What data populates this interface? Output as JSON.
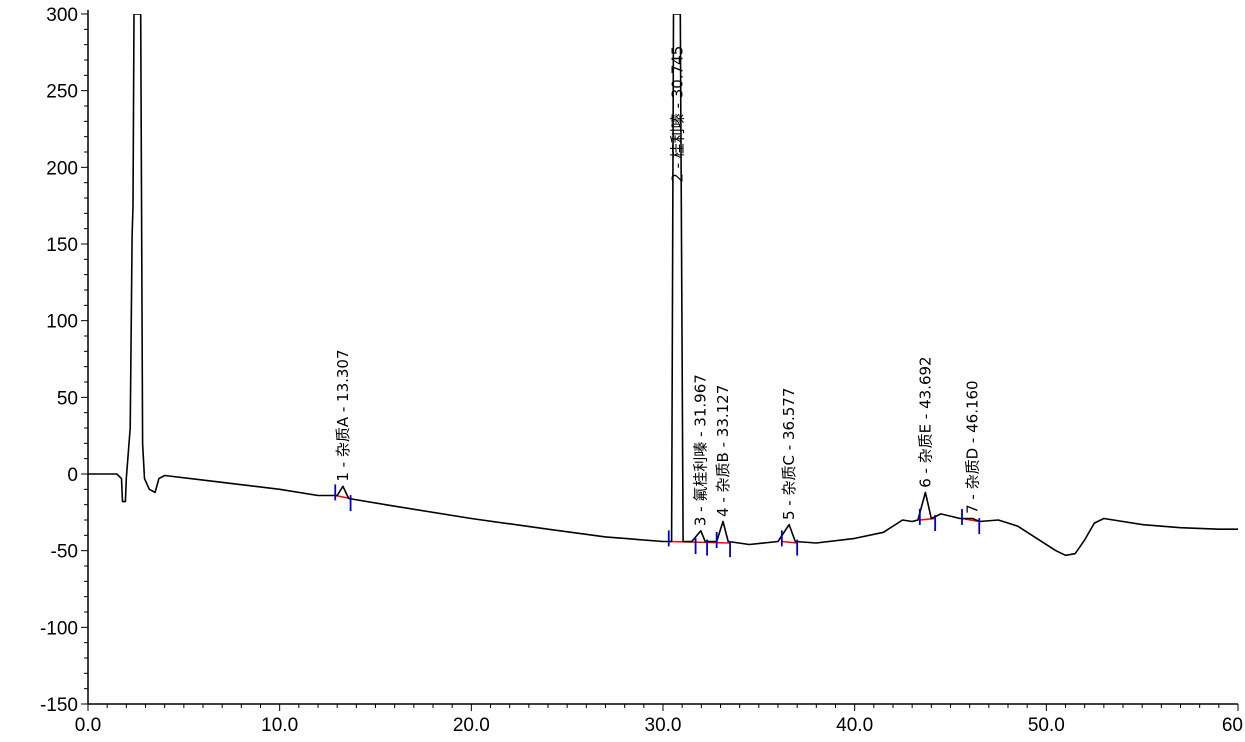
{
  "chart_data": {
    "type": "line",
    "title": "",
    "xlabel": "",
    "ylabel": "",
    "xlim": [
      0.0,
      60.0
    ],
    "ylim": [
      -150,
      300
    ],
    "x_ticks": [
      {
        "value": 0,
        "label": "0.0"
      },
      {
        "value": 10,
        "label": "10.0"
      },
      {
        "value": 20,
        "label": "20.0"
      },
      {
        "value": 30,
        "label": "30.0"
      },
      {
        "value": 40,
        "label": "40.0"
      },
      {
        "value": 50,
        "label": "50.0"
      },
      {
        "value": 60,
        "label": "60"
      }
    ],
    "y_ticks": [
      {
        "value": 300,
        "label": "300"
      },
      {
        "value": 250,
        "label": "250"
      },
      {
        "value": 200,
        "label": "200"
      },
      {
        "value": 150,
        "label": "150"
      },
      {
        "value": 100,
        "label": "100"
      },
      {
        "value": 50,
        "label": "50"
      },
      {
        "value": 0,
        "label": "0"
      },
      {
        "value": -50,
        "label": "-50"
      },
      {
        "value": -100,
        "label": "-100"
      },
      {
        "value": -150,
        "label": "-150"
      }
    ],
    "grid": false,
    "series": [
      {
        "line_color": "#000000",
        "points": [
          [
            0.0,
            0.0
          ],
          [
            1.5,
            0.0
          ],
          [
            1.75,
            -3
          ],
          [
            1.8,
            -18
          ],
          [
            1.95,
            -18
          ],
          [
            2.0,
            -3
          ],
          [
            2.2,
            30
          ],
          [
            2.3,
            155
          ],
          [
            2.35,
            175
          ],
          [
            2.4,
            300
          ],
          [
            2.5,
            300
          ],
          [
            2.65,
            300
          ],
          [
            2.75,
            300
          ],
          [
            2.85,
            20
          ],
          [
            2.95,
            -3
          ],
          [
            3.2,
            -10
          ],
          [
            3.5,
            -12
          ],
          [
            3.7,
            -3
          ],
          [
            4.0,
            -1
          ],
          [
            6.0,
            -4
          ],
          [
            8.0,
            -7
          ],
          [
            10.0,
            -10
          ],
          [
            12.0,
            -14
          ],
          [
            13.0,
            -14
          ],
          [
            13.3,
            -8
          ],
          [
            13.6,
            -16
          ],
          [
            16.0,
            -21
          ],
          [
            20.0,
            -29
          ],
          [
            24.0,
            -36
          ],
          [
            27.0,
            -41
          ],
          [
            30.0,
            -44
          ],
          [
            30.45,
            -44
          ],
          [
            30.55,
            300
          ],
          [
            30.7,
            300
          ],
          [
            30.9,
            300
          ],
          [
            31.05,
            -44
          ],
          [
            31.5,
            -44
          ],
          [
            31.97,
            -37
          ],
          [
            32.2,
            -44
          ],
          [
            32.8,
            -44
          ],
          [
            33.13,
            -31
          ],
          [
            33.4,
            -44
          ],
          [
            34.5,
            -46
          ],
          [
            36.0,
            -44
          ],
          [
            36.58,
            -33
          ],
          [
            36.9,
            -44
          ],
          [
            38.0,
            -45
          ],
          [
            40.0,
            -42
          ],
          [
            41.5,
            -38
          ],
          [
            42.5,
            -30
          ],
          [
            43.0,
            -31
          ],
          [
            43.3,
            -30
          ],
          [
            43.69,
            -12
          ],
          [
            44.0,
            -29
          ],
          [
            44.5,
            -26
          ],
          [
            45.5,
            -29
          ],
          [
            46.16,
            -29
          ],
          [
            46.5,
            -31
          ],
          [
            47.5,
            -30
          ],
          [
            48.5,
            -34
          ],
          [
            49.5,
            -42
          ],
          [
            50.5,
            -50
          ],
          [
            51.0,
            -53
          ],
          [
            51.5,
            -52
          ],
          [
            52.0,
            -43
          ],
          [
            52.5,
            -32
          ],
          [
            53.0,
            -29
          ],
          [
            53.5,
            -30
          ],
          [
            55.0,
            -33
          ],
          [
            57.0,
            -35
          ],
          [
            59.0,
            -36
          ],
          [
            60.0,
            -36
          ]
        ]
      }
    ],
    "baselines": [
      {
        "from": [
          12.9,
          -14
        ],
        "to": [
          13.7,
          -16
        ],
        "color": "#ff0000"
      },
      {
        "from": [
          30.3,
          -44
        ],
        "to": [
          33.5,
          -45
        ],
        "color": "#ff0000"
      },
      {
        "from": [
          36.2,
          -44
        ],
        "to": [
          37.0,
          -45
        ],
        "color": "#ff0000"
      },
      {
        "from": [
          43.4,
          -30
        ],
        "to": [
          44.2,
          -29
        ],
        "color": "#ff0000"
      },
      {
        "from": [
          45.6,
          -29
        ],
        "to": [
          46.5,
          -31
        ],
        "color": "#ff0000"
      }
    ],
    "peak_markers": [
      {
        "x": 12.9,
        "y": -12,
        "color": "#0000cc"
      },
      {
        "x": 13.7,
        "y": -19,
        "color": "#0000cc"
      },
      {
        "x": 30.3,
        "y": -42,
        "color": "#0000cc"
      },
      {
        "x": 31.7,
        "y": -47,
        "color": "#0000cc"
      },
      {
        "x": 32.3,
        "y": -48,
        "color": "#0000cc"
      },
      {
        "x": 32.8,
        "y": -43,
        "color": "#0000cc"
      },
      {
        "x": 33.5,
        "y": -49,
        "color": "#0000cc"
      },
      {
        "x": 36.2,
        "y": -42,
        "color": "#0000cc"
      },
      {
        "x": 37.0,
        "y": -48,
        "color": "#0000cc"
      },
      {
        "x": 43.4,
        "y": -28,
        "color": "#0000cc"
      },
      {
        "x": 44.2,
        "y": -32,
        "color": "#0000cc"
      },
      {
        "x": 45.6,
        "y": -28,
        "color": "#0000cc"
      },
      {
        "x": 46.5,
        "y": -34,
        "color": "#0000cc"
      }
    ],
    "annotations": [
      {
        "x": 13.307,
        "y": -5,
        "text": "1 - 杂质A - 13.307"
      },
      {
        "x": 30.745,
        "y": 190,
        "text": "2 - 桂利嗪 - 30.745"
      },
      {
        "x": 31.967,
        "y": -34,
        "text": "3 - 氟桂利嗪 - 31.967"
      },
      {
        "x": 33.127,
        "y": -28,
        "text": "4 - 杂质B - 33.127"
      },
      {
        "x": 36.577,
        "y": -30,
        "text": "5 - 杂质C - 36.577"
      },
      {
        "x": 43.692,
        "y": -9,
        "text": "6 - 杂质E - 43.692"
      },
      {
        "x": 46.16,
        "y": -26,
        "text": "7 - 杂质D - 46.160"
      }
    ]
  }
}
